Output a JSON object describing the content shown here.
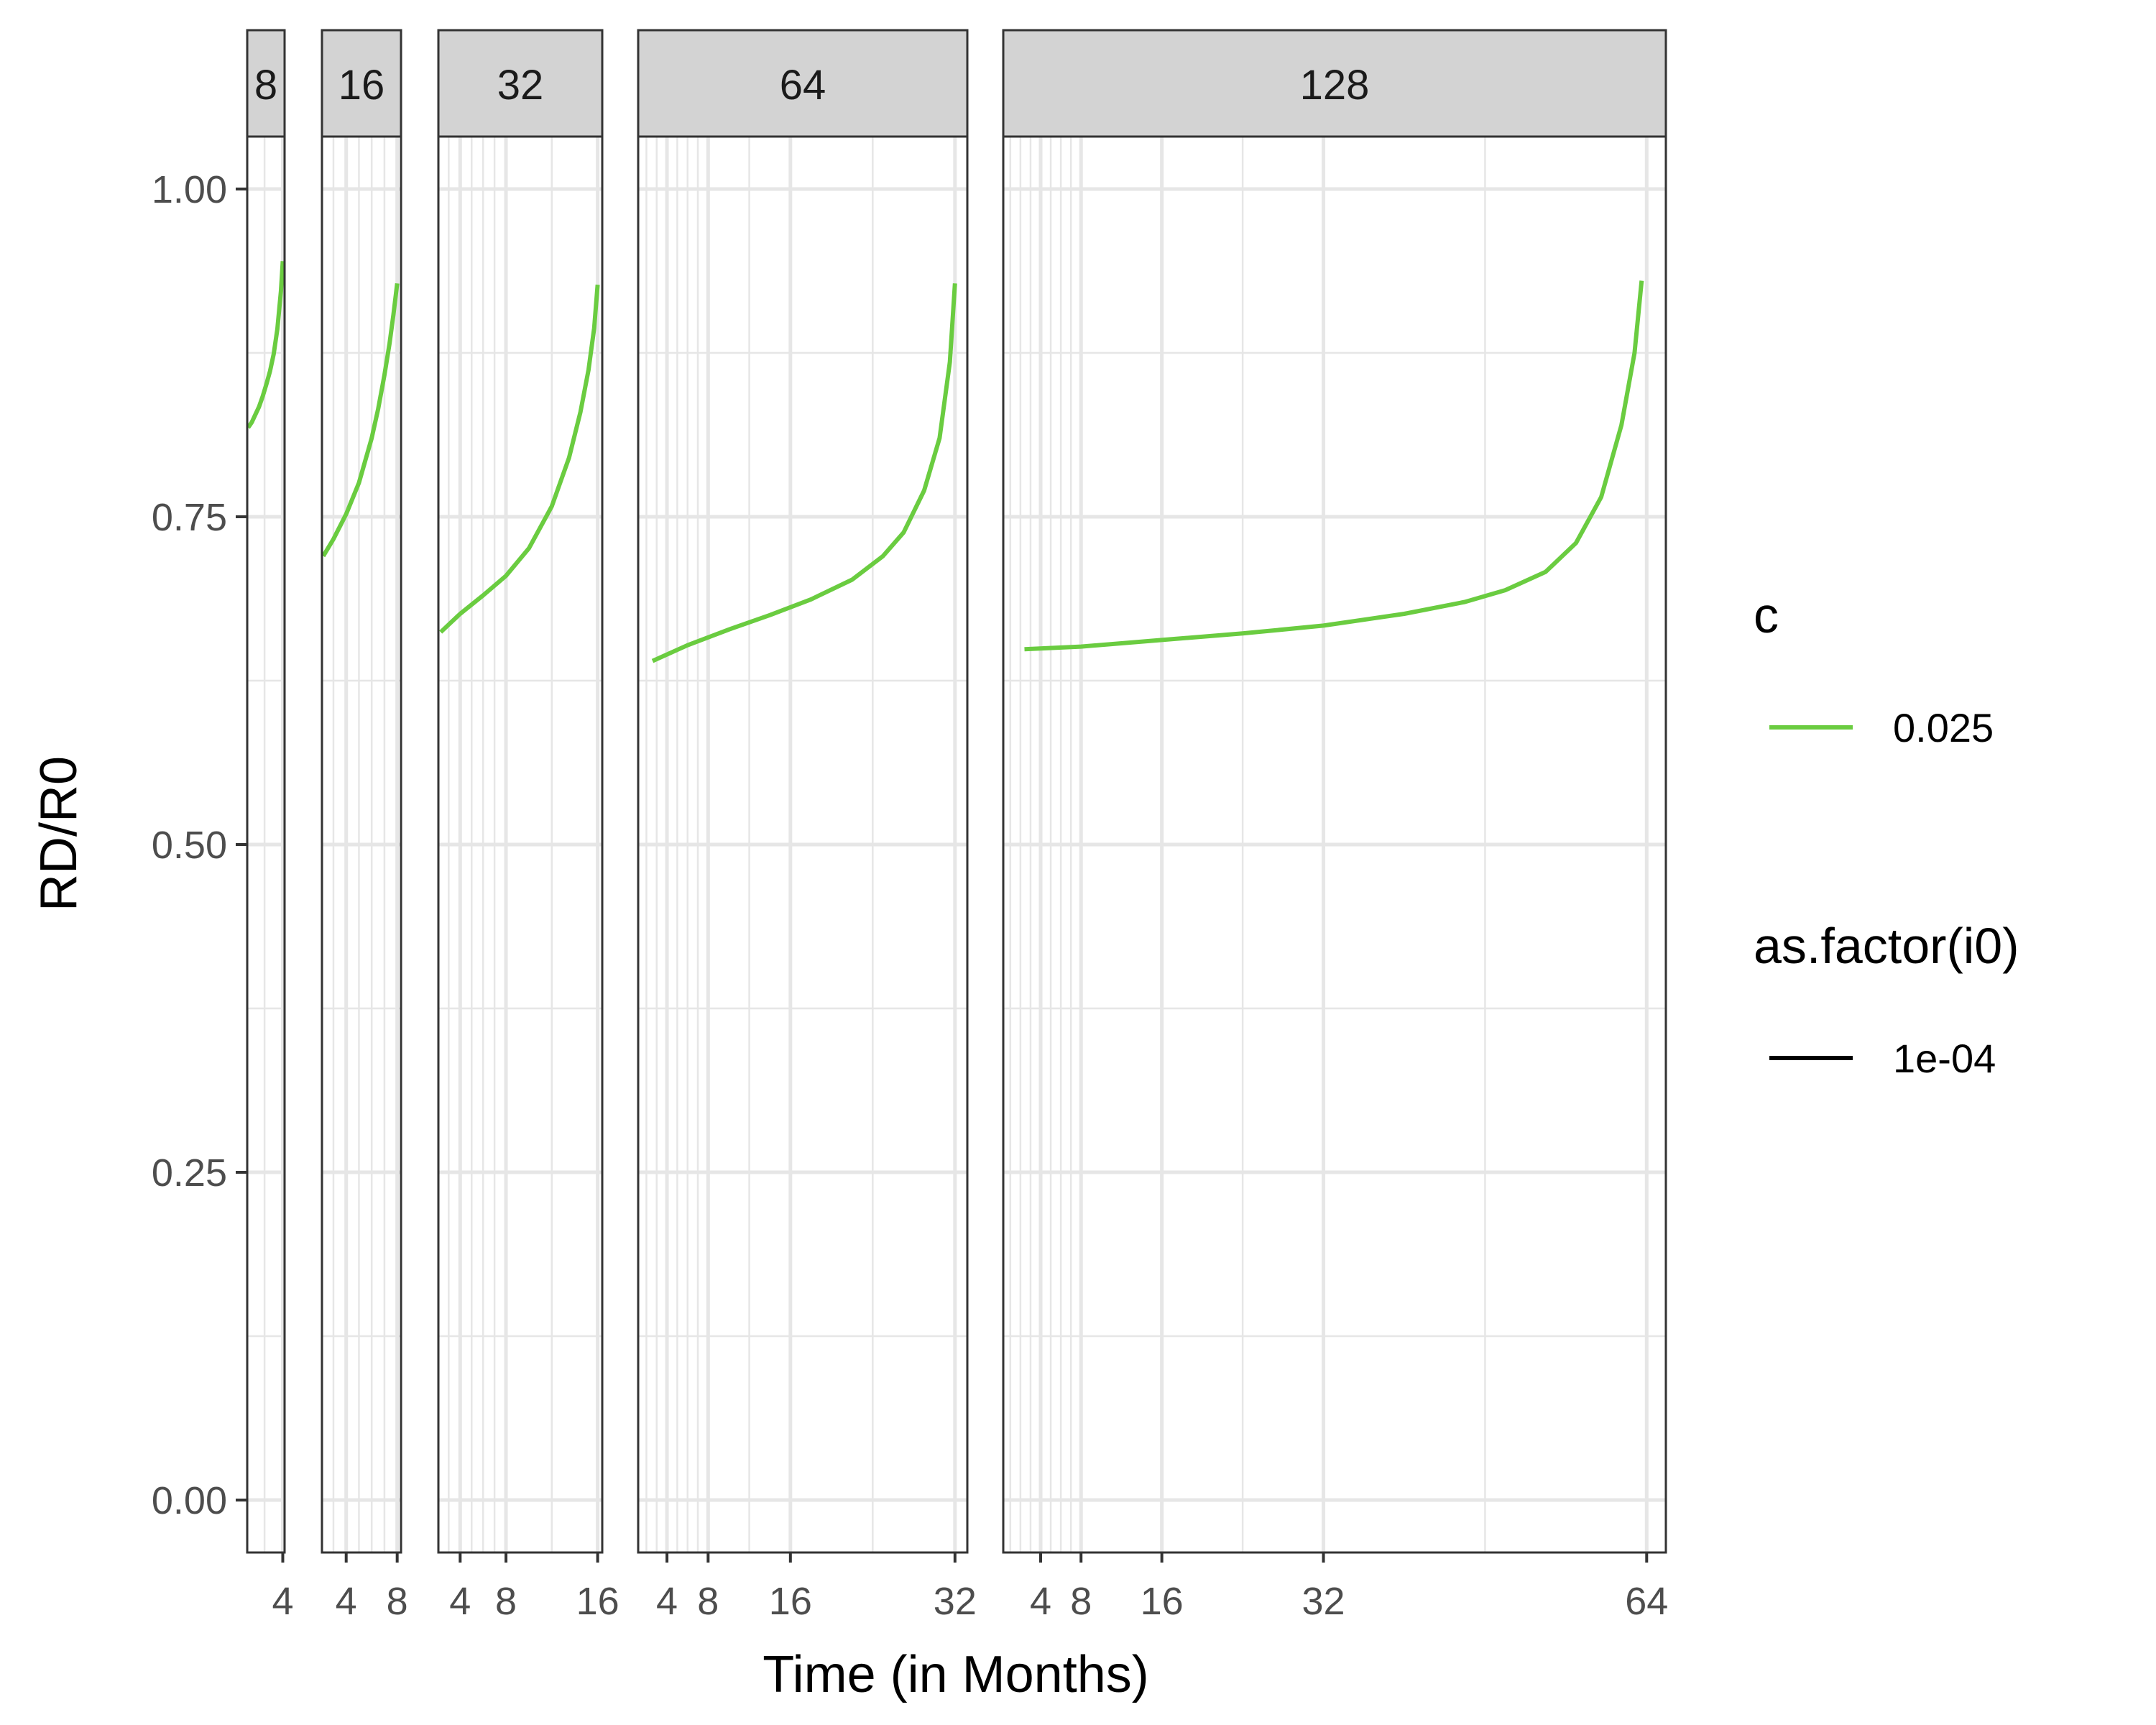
{
  "chart_data": {
    "type": "line",
    "xlabel": "Time (in Months)",
    "ylabel": "RD/R0",
    "ylim": [
      -0.04,
      1.04
    ],
    "yticks": [
      0.0,
      0.25,
      0.5,
      0.75,
      1.0
    ],
    "ytick_labels": [
      "0.00",
      "0.25",
      "0.50",
      "0.75",
      "1.00"
    ],
    "grid": true,
    "facets": [
      {
        "label": "8",
        "xlim": [
          2.05,
          4.1
        ],
        "xticks": [
          4
        ],
        "xtick_labels": [
          "4"
        ],
        "minor": [
          2,
          3
        ],
        "x": [
          2.1,
          2.3,
          2.5,
          2.7,
          2.9,
          3.1,
          3.3,
          3.5,
          3.7,
          3.9,
          4.0
        ],
        "y": [
          0.818,
          0.822,
          0.828,
          0.834,
          0.842,
          0.851,
          0.861,
          0.874,
          0.893,
          0.922,
          0.945
        ]
      },
      {
        "label": "16",
        "xlim": [
          2.1,
          8.3
        ],
        "xticks": [
          4,
          8
        ],
        "xtick_labels": [
          "4",
          "8"
        ],
        "minor": [
          3,
          5,
          6,
          7
        ],
        "x": [
          2.2,
          3.0,
          4.0,
          5.0,
          6.0,
          6.5,
          7.0,
          7.4,
          7.7,
          8.0
        ],
        "y": [
          0.72,
          0.733,
          0.752,
          0.776,
          0.81,
          0.832,
          0.858,
          0.882,
          0.904,
          0.928
        ]
      },
      {
        "label": "32",
        "xlim": [
          2.1,
          16.4
        ],
        "xticks": [
          4,
          8,
          16
        ],
        "xtick_labels": [
          "4",
          "8",
          "16"
        ],
        "minor": [
          3,
          5,
          6,
          7,
          12
        ],
        "x": [
          2.3,
          4.0,
          6.0,
          8.0,
          10.0,
          12.0,
          13.5,
          14.5,
          15.2,
          15.7,
          16.0
        ],
        "y": [
          0.662,
          0.676,
          0.69,
          0.705,
          0.726,
          0.758,
          0.795,
          0.83,
          0.862,
          0.894,
          0.927
        ]
      },
      {
        "label": "64",
        "xlim": [
          1.2,
          33.2
        ],
        "xticks": [
          4,
          8,
          16,
          32
        ],
        "xtick_labels": [
          "4",
          "8",
          "16",
          "32"
        ],
        "minor": [
          2,
          3,
          5,
          6,
          7,
          12,
          24
        ],
        "x": [
          2.6,
          6.0,
          10.0,
          14.0,
          18.0,
          22.0,
          25.0,
          27.0,
          29.0,
          30.5,
          31.5,
          32.0
        ],
        "y": [
          0.64,
          0.652,
          0.664,
          0.675,
          0.687,
          0.702,
          0.72,
          0.738,
          0.77,
          0.81,
          0.868,
          0.928
        ]
      },
      {
        "label": "128",
        "xlim": [
          0.3,
          65.9
        ],
        "xticks": [
          4,
          8,
          16,
          32,
          64
        ],
        "xtick_labels": [
          "4",
          "8",
          "16",
          "32",
          "64"
        ],
        "minor": [
          1,
          2,
          3,
          5,
          6,
          7,
          24,
          48
        ],
        "x": [
          2.4,
          8.0,
          16.0,
          24.0,
          32.0,
          40.0,
          46.0,
          50.0,
          54.0,
          57.0,
          59.5,
          61.5,
          62.8,
          63.5
        ],
        "y": [
          0.649,
          0.651,
          0.656,
          0.661,
          0.667,
          0.676,
          0.685,
          0.694,
          0.708,
          0.73,
          0.765,
          0.82,
          0.875,
          0.93
        ]
      }
    ],
    "legends": [
      {
        "title": "c",
        "entries": [
          {
            "label": "0.025",
            "color": "#6acc40"
          }
        ]
      },
      {
        "title": "as.factor(i0)",
        "entries": [
          {
            "label": "1e-04",
            "color": "#000000"
          }
        ]
      }
    ],
    "line_color": "#6acc40",
    "grid_color": "#e6e6e6",
    "strip_fill": "#d3d3d3"
  }
}
